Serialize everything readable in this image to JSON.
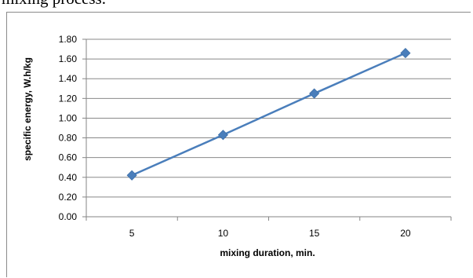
{
  "page": {
    "top_text": "mixing process."
  },
  "chart_data": {
    "type": "line",
    "title": "",
    "xlabel": "mixing duration, min.",
    "ylabel": "specific energy, W.h/kg",
    "categories": [
      "5",
      "10",
      "15",
      "20"
    ],
    "series": [
      {
        "values": [
          0.42,
          0.83,
          1.25,
          1.66
        ]
      }
    ],
    "ylim": [
      0,
      1.8
    ],
    "yticks": [
      "0.00",
      "0.20",
      "0.40",
      "0.60",
      "0.80",
      "1.00",
      "1.20",
      "1.40",
      "1.60",
      "1.80"
    ],
    "grid": true,
    "legend": "none",
    "colors": {
      "series": "#4a7ebb",
      "grid": "#898989",
      "axis": "#868686"
    }
  }
}
